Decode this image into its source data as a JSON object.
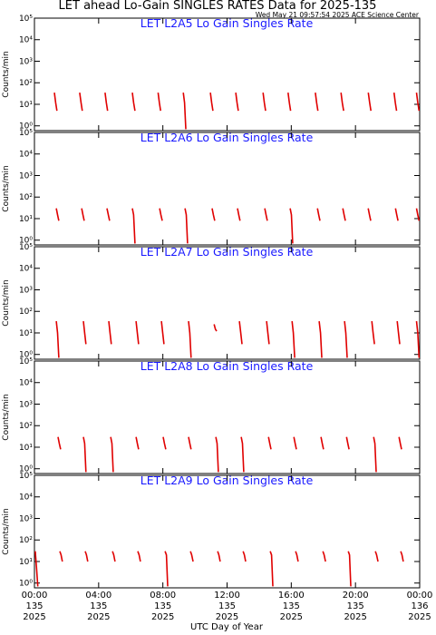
{
  "title": "LET ahead Lo-Gain SINGLES RATES Data for 2025-135",
  "timestamp": "Wed May 21 09:57:54 2025 ACE Science Center",
  "xlabel": "UTC Day of Year",
  "chart_data": [
    {
      "type": "line",
      "title": "LET L2A5 Lo Gain Singles Rate",
      "ylabel": "Counts/min",
      "log_y": true,
      "ylim": [
        0.6,
        100000
      ],
      "yticks": [
        {
          "value": 1,
          "label": "10⁰"
        },
        {
          "value": 10,
          "label": "10¹"
        },
        {
          "value": 100,
          "label": "10²"
        },
        {
          "value": 1000,
          "label": "10³"
        },
        {
          "value": 10000,
          "label": "10⁴"
        },
        {
          "value": 100000,
          "label": "10⁵"
        }
      ],
      "xlim": [
        0,
        24
      ],
      "x": [
        1.24,
        1.32,
        1.4,
        null,
        2.82,
        2.9,
        2.98,
        null,
        4.4,
        4.48,
        4.56,
        null,
        6.1,
        6.18,
        6.26,
        null,
        7.7,
        7.78,
        7.86,
        null,
        9.27,
        9.35,
        9.43,
        null,
        10.96,
        11.04,
        11.12,
        null,
        12.54,
        12.62,
        12.7,
        null,
        14.24,
        14.32,
        14.4,
        null,
        15.8,
        15.88,
        15.96,
        null,
        17.5,
        17.58,
        17.66,
        null,
        19.1,
        19.18,
        19.26,
        null,
        20.8,
        20.88,
        20.96,
        null,
        22.4,
        22.48,
        22.56,
        null,
        23.8,
        23.88,
        23.96
      ],
      "series": [
        {
          "name": "L2A5",
          "color": "#e00000",
          "values": [
            35,
            12,
            5,
            null,
            35,
            12,
            5,
            null,
            35,
            12,
            5,
            null,
            35,
            12,
            5,
            null,
            35,
            12,
            5,
            null,
            35,
            12,
            0.7,
            null,
            35,
            12,
            5,
            null,
            35,
            12,
            5,
            null,
            35,
            12,
            5,
            null,
            35,
            12,
            5,
            null,
            35,
            12,
            5,
            null,
            35,
            12,
            5,
            null,
            35,
            12,
            5,
            null,
            35,
            12,
            5,
            null,
            35,
            12,
            5
          ]
        }
      ]
    },
    {
      "type": "line",
      "title": "LET L2A6 Lo Gain Singles Rate",
      "ylabel": "Counts/min",
      "log_y": true,
      "ylim": [
        0.6,
        100000
      ],
      "yticks": [
        {
          "value": 1,
          "label": "10⁰"
        },
        {
          "value": 10,
          "label": "10¹"
        },
        {
          "value": 100,
          "label": "10²"
        },
        {
          "value": 1000,
          "label": "10³"
        },
        {
          "value": 10000,
          "label": "10⁴"
        },
        {
          "value": 100000,
          "label": "10⁵"
        }
      ],
      "xlim": [
        0,
        24
      ],
      "x": [
        1.36,
        1.44,
        1.52,
        null,
        2.94,
        3.02,
        3.1,
        null,
        4.52,
        4.6,
        4.68,
        null,
        6.1,
        6.18,
        6.26,
        null,
        7.8,
        7.88,
        7.96,
        null,
        9.38,
        9.46,
        9.54,
        null,
        11.07,
        11.15,
        11.23,
        null,
        12.65,
        12.73,
        12.81,
        null,
        14.35,
        14.43,
        14.51,
        null,
        15.93,
        16.01,
        16.09,
        null,
        17.63,
        17.71,
        17.79,
        null,
        19.21,
        19.29,
        19.37,
        null,
        20.79,
        20.87,
        20.95,
        null,
        22.49,
        22.57,
        22.65,
        null,
        23.8,
        23.88,
        23.96
      ],
      "series": [
        {
          "name": "L2A6",
          "color": "#e00000",
          "values": [
            30,
            15,
            8,
            null,
            30,
            15,
            8,
            null,
            30,
            15,
            8,
            null,
            30,
            15,
            0.7,
            null,
            30,
            15,
            8,
            null,
            30,
            15,
            0.7,
            null,
            30,
            15,
            8,
            null,
            30,
            15,
            8,
            null,
            30,
            15,
            8,
            null,
            30,
            15,
            0.7,
            null,
            30,
            15,
            8,
            null,
            30,
            15,
            8,
            null,
            30,
            15,
            8,
            null,
            30,
            15,
            8,
            null,
            30,
            15,
            8
          ]
        }
      ]
    },
    {
      "type": "line",
      "title": "LET L2A7 Lo Gain Singles Rate",
      "ylabel": "Counts/min",
      "log_y": true,
      "ylim": [
        0.6,
        100000
      ],
      "yticks": [
        {
          "value": 1,
          "label": "10⁰"
        },
        {
          "value": 10,
          "label": "10¹"
        },
        {
          "value": 100,
          "label": "10²"
        },
        {
          "value": 1000,
          "label": "10³"
        },
        {
          "value": 10000,
          "label": "10⁴"
        },
        {
          "value": 100000,
          "label": "10⁵"
        }
      ],
      "xlim": [
        0,
        24
      ],
      "x": [
        1.36,
        1.44,
        1.52,
        null,
        3.05,
        3.13,
        3.21,
        null,
        4.63,
        4.71,
        4.79,
        null,
        6.33,
        6.41,
        6.49,
        null,
        7.91,
        7.99,
        8.07,
        null,
        9.6,
        9.68,
        9.76,
        null,
        11.19,
        11.27,
        11.35,
        null,
        12.77,
        12.85,
        12.93,
        null,
        14.46,
        14.54,
        14.62,
        null,
        16.05,
        16.13,
        16.21,
        null,
        17.74,
        17.82,
        17.9,
        null,
        19.32,
        19.4,
        19.48,
        null,
        21.02,
        21.1,
        21.18,
        null,
        22.6,
        22.68,
        22.76,
        null,
        23.8,
        23.88,
        23.96
      ],
      "series": [
        {
          "name": "L2A7",
          "color": "#e00000",
          "values": [
            35,
            10,
            0.7,
            null,
            35,
            10,
            3,
            null,
            35,
            10,
            3,
            null,
            35,
            10,
            3,
            null,
            35,
            10,
            3,
            null,
            35,
            10,
            0.7,
            null,
            25,
            15,
            12,
            null,
            35,
            10,
            3,
            null,
            35,
            10,
            3,
            null,
            35,
            10,
            0.7,
            null,
            35,
            10,
            0.7,
            null,
            35,
            10,
            0.7,
            null,
            35,
            10,
            3,
            null,
            35,
            10,
            3,
            null,
            35,
            10,
            0.7
          ]
        }
      ]
    },
    {
      "type": "line",
      "title": "LET L2A8 Lo Gain Singles Rate",
      "ylabel": "Counts/min",
      "log_y": true,
      "ylim": [
        0.6,
        100000
      ],
      "yticks": [
        {
          "value": 1,
          "label": "10⁰"
        },
        {
          "value": 10,
          "label": "10¹"
        },
        {
          "value": 100,
          "label": "10²"
        },
        {
          "value": 1000,
          "label": "10³"
        },
        {
          "value": 10000,
          "label": "10⁴"
        },
        {
          "value": 100000,
          "label": "10⁵"
        }
      ],
      "xlim": [
        0,
        24
      ],
      "x": [
        1.47,
        1.55,
        1.63,
        null,
        3.05,
        3.13,
        3.21,
        null,
        4.75,
        4.83,
        4.91,
        null,
        6.33,
        6.41,
        6.49,
        null,
        8.02,
        8.1,
        8.18,
        null,
        9.6,
        9.68,
        9.76,
        null,
        11.3,
        11.38,
        11.46,
        null,
        12.88,
        12.96,
        13.04,
        null,
        14.58,
        14.66,
        14.74,
        null,
        16.16,
        16.24,
        16.32,
        null,
        17.85,
        17.93,
        18.01,
        null,
        19.44,
        19.52,
        19.6,
        null,
        21.13,
        21.21,
        21.29,
        null,
        22.71,
        22.79,
        22.87
      ],
      "series": [
        {
          "name": "L2A8",
          "color": "#e00000",
          "values": [
            30,
            15,
            8,
            null,
            30,
            15,
            0.7,
            null,
            30,
            15,
            0.7,
            null,
            30,
            15,
            8,
            null,
            30,
            15,
            8,
            null,
            30,
            15,
            8,
            null,
            30,
            15,
            0.7,
            null,
            30,
            15,
            0.7,
            null,
            30,
            15,
            8,
            null,
            30,
            15,
            8,
            null,
            30,
            15,
            8,
            null,
            30,
            15,
            8,
            null,
            30,
            15,
            0.7,
            null,
            30,
            15,
            8
          ]
        }
      ]
    },
    {
      "type": "line",
      "title": "LET L2A9 Lo Gain Singles Rate",
      "ylabel": "Counts/min",
      "log_y": true,
      "ylim": [
        0.6,
        100000
      ],
      "yticks": [
        {
          "value": 1,
          "label": "10⁰"
        },
        {
          "value": 10,
          "label": "10¹"
        },
        {
          "value": 100,
          "label": "10²"
        },
        {
          "value": 1000,
          "label": "10³"
        },
        {
          "value": 10000,
          "label": "10⁴"
        },
        {
          "value": 100000,
          "label": "10⁵"
        }
      ],
      "xlim": [
        0,
        24
      ],
      "xticks": [
        {
          "value": 0,
          "label": "00:00"
        },
        {
          "value": 4,
          "label": "04:00"
        },
        {
          "value": 8,
          "label": "08:00"
        },
        {
          "value": 12,
          "label": "12:00"
        },
        {
          "value": 16,
          "label": "16:00"
        },
        {
          "value": 20,
          "label": "20:00"
        },
        {
          "value": 24,
          "label": "00:00"
        }
      ],
      "xtick_days": [
        "135",
        "135",
        "135",
        "135",
        "135",
        "135",
        "136"
      ],
      "xtick_years": [
        "2025",
        "2025",
        "2025",
        "2025",
        "2025",
        "2025",
        "2025"
      ],
      "x": [
        0.05,
        0.13,
        0.21,
        null,
        1.58,
        1.66,
        1.74,
        null,
        3.16,
        3.24,
        3.32,
        null,
        4.86,
        4.94,
        5.02,
        null,
        6.44,
        6.52,
        6.6,
        null,
        8.14,
        8.22,
        8.3,
        null,
        9.72,
        9.8,
        9.88,
        null,
        11.41,
        11.49,
        11.57,
        null,
        13,
        13.08,
        13.16,
        null,
        14.69,
        14.77,
        14.85,
        null,
        16.27,
        16.35,
        16.43,
        null,
        17.97,
        18.05,
        18.13,
        null,
        19.55,
        19.63,
        19.71,
        null,
        21.24,
        21.32,
        21.4,
        null,
        22.82,
        22.9,
        22.98
      ],
      "series": [
        {
          "name": "L2A9",
          "color": "#e00000",
          "values": [
            30,
            5,
            0.7,
            null,
            30,
            20,
            10,
            null,
            30,
            20,
            10,
            null,
            30,
            20,
            10,
            null,
            30,
            20,
            10,
            null,
            30,
            20,
            0.7,
            null,
            30,
            20,
            10,
            null,
            30,
            20,
            10,
            null,
            30,
            20,
            10,
            null,
            30,
            20,
            0.7,
            null,
            30,
            20,
            10,
            null,
            30,
            20,
            10,
            null,
            30,
            20,
            0.7,
            null,
            30,
            20,
            10,
            null,
            30,
            20,
            10
          ]
        }
      ]
    }
  ]
}
